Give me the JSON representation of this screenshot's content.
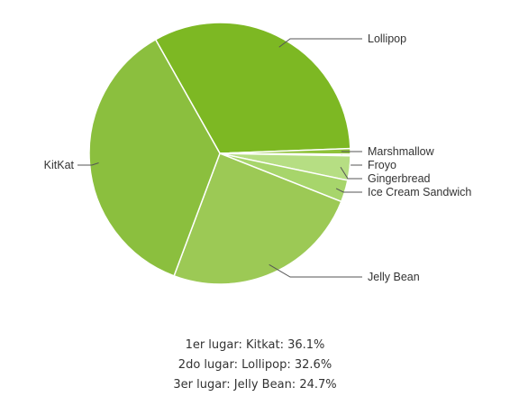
{
  "chart_data": {
    "type": "pie",
    "title": "",
    "slices": [
      {
        "label": "Lollipop",
        "value": 32.6,
        "color": "#7db823"
      },
      {
        "label": "Marshmallow",
        "value": 0.7,
        "color": "#8fc23a"
      },
      {
        "label": "Froyo",
        "value": 0.2,
        "color": "#c5e49c"
      },
      {
        "label": "Gingerbread",
        "value": 3.0,
        "color": "#b6de83"
      },
      {
        "label": "Ice Cream Sandwich",
        "value": 2.7,
        "color": "#a7d56b"
      },
      {
        "label": "Jelly Bean",
        "value": 24.7,
        "color": "#9cc955"
      },
      {
        "label": "KitKat",
        "value": 36.1,
        "color": "#8bbf3e"
      }
    ]
  },
  "caption": {
    "line1": "1er lugar: Kitkat: 36.1%",
    "line2": "2do lugar: Lollipop: 32.6%",
    "line3": "3er lugar: Jelly Bean: 24.7%"
  }
}
